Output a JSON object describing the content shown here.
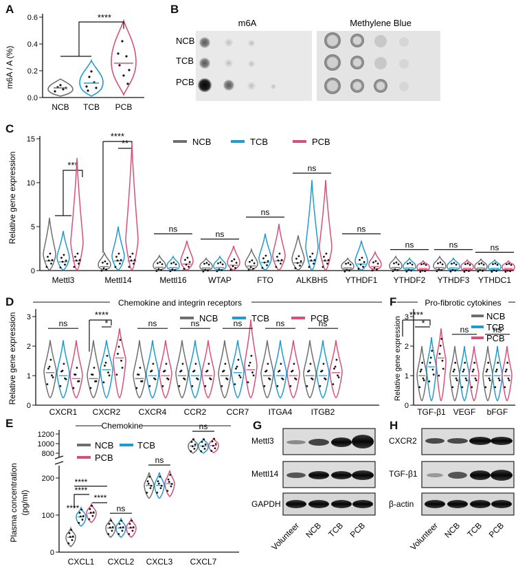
{
  "colors": {
    "ncb": "#6e6e6e",
    "tcb": "#1e9bd0",
    "pcb": "#d94f77",
    "ink": "#111111"
  },
  "groups": [
    "NCB",
    "TCB",
    "PCB"
  ],
  "panels": {
    "A": {
      "letter": "A",
      "ylabel": "m6A / A (%)",
      "ticks": [
        "0.0",
        "0.2",
        "0.4",
        "0.6"
      ],
      "categories": [
        "NCB",
        "TCB",
        "PCB"
      ],
      "sig": "****"
    },
    "B": {
      "letter": "B",
      "title_left": "m6A",
      "title_right": "Methylene Blue",
      "rows": [
        "NCB",
        "TCB",
        "PCB"
      ]
    },
    "C": {
      "letter": "C",
      "ylabel": "Relative gene expression",
      "ticks": [
        "0",
        "5",
        "10",
        "15"
      ],
      "genes": [
        "Mettl3",
        "Mettl14",
        "Mettl16",
        "WTAP",
        "FTO",
        "ALKBH5",
        "YTHDF1",
        "YTHDF2",
        "YTHDF3",
        "YTHDC1"
      ],
      "sig": [
        "***",
        "****",
        "**",
        "ns"
      ]
    },
    "D": {
      "letter": "D",
      "title": "Chemokine and integrin receptors",
      "ylabel": "Relative gene expression",
      "ticks": [
        "0",
        "1",
        "2",
        "3"
      ],
      "genes": [
        "CXCR1",
        "CXCR2",
        "CXCR4",
        "CCR2",
        "CCR7",
        "ITGA4",
        "ITGB2"
      ],
      "sig": [
        "ns",
        "****",
        "*"
      ]
    },
    "E": {
      "letter": "E",
      "title": "Chemokine",
      "ylabel": "Plasma concentration",
      "yunit": "(pg/ml)",
      "ticks_top": [
        "1200",
        "1000",
        "800"
      ],
      "ticks_bottom": [
        "200",
        "100",
        "0"
      ],
      "categories": [
        "CXCL1",
        "CXCL2",
        "CXCL3",
        "CXCL7"
      ],
      "sig": [
        "****",
        "ns"
      ]
    },
    "F": {
      "letter": "F",
      "title": "Pro-fibrotic cytokines",
      "ylabel": "Relative gene expression",
      "ticks": [
        "0",
        "1",
        "2",
        "3"
      ],
      "categories": [
        "TGF-β1",
        "VEGF",
        "bFGF"
      ],
      "sig": [
        "****",
        "*",
        "ns"
      ]
    },
    "G": {
      "letter": "G",
      "rows": [
        "Mettl3",
        "Mettl14",
        "GAPDH"
      ],
      "lanes": [
        "Volunteer",
        "NCB",
        "TCB",
        "PCB"
      ]
    },
    "H": {
      "letter": "H",
      "rows": [
        "CXCR2",
        "TGF-β1",
        "β-actin"
      ],
      "lanes": [
        "Volunteer",
        "NCB",
        "TCB",
        "PCB"
      ]
    }
  },
  "chart_data": [
    {
      "panel": "A",
      "type": "violin",
      "categories": [
        "NCB",
        "TCB",
        "PCB"
      ],
      "ylabel": "m6A / A (%)",
      "ylim": [
        0,
        0.6
      ],
      "series": [
        {
          "name": "NCB",
          "median": 0.08
        },
        {
          "name": "TCB",
          "median": 0.12
        },
        {
          "name": "PCB",
          "median": 0.26
        }
      ]
    },
    {
      "panel": "C",
      "type": "violin",
      "ylabel": "Relative gene expression",
      "ylim": [
        0,
        15
      ],
      "categories": [
        "Mettl3",
        "Mettl14",
        "Mettl16",
        "WTAP",
        "FTO",
        "ALKBH5",
        "YTHDF1",
        "YTHDF2",
        "YTHDF3",
        "YTHDC1"
      ],
      "series": [
        {
          "name": "NCB",
          "max": [
            6,
            2,
            1.7,
            1.4,
            2.4,
            4,
            1.4,
            1.6,
            1.6,
            1.3
          ]
        },
        {
          "name": "TCB",
          "max": [
            4.5,
            5,
            1.6,
            1.6,
            4.2,
            10.3,
            3.4,
            1.4,
            1.4,
            1.2
          ]
        },
        {
          "name": "PCB",
          "max": [
            12.8,
            14.5,
            3.4,
            2.8,
            5.3,
            10.3,
            2.1,
            1.1,
            1.2,
            1.1
          ]
        }
      ]
    },
    {
      "panel": "D",
      "type": "violin",
      "ylabel": "Relative gene expression",
      "ylim": [
        0,
        3
      ],
      "categories": [
        "CXCR1",
        "CXCR2",
        "CXCR4",
        "CCR2",
        "CCR7",
        "ITGA4",
        "ITGB2"
      ],
      "series": [
        {
          "name": "NCB",
          "median": [
            1.1,
            0.9,
            0.9,
            1.0,
            1.0,
            1.0,
            1.0
          ]
        },
        {
          "name": "TCB",
          "median": [
            1.0,
            1.2,
            1.0,
            1.0,
            1.1,
            1.0,
            1.0
          ]
        },
        {
          "name": "PCB",
          "median": [
            0.9,
            1.6,
            1.0,
            1.0,
            1.2,
            1.0,
            1.1
          ]
        }
      ]
    },
    {
      "panel": "E",
      "type": "violin",
      "ylabel": "Plasma concentration (pg/ml)",
      "categories": [
        "CXCL1",
        "CXCL2",
        "CXCL3",
        "CXCL7"
      ],
      "series": [
        {
          "name": "NCB",
          "median": [
            40,
            65,
            180,
            950
          ]
        },
        {
          "name": "TCB",
          "median": [
            95,
            65,
            180,
            950
          ]
        },
        {
          "name": "PCB",
          "median": [
            105,
            65,
            185,
            960
          ]
        }
      ]
    },
    {
      "panel": "F",
      "type": "violin",
      "ylabel": "Relative gene expression",
      "ylim": [
        0,
        3
      ],
      "categories": [
        "TGF-β1",
        "VEGF",
        "bFGF"
      ],
      "series": [
        {
          "name": "NCB",
          "median": [
            1.0,
            1.0,
            1.0
          ]
        },
        {
          "name": "TCB",
          "median": [
            1.3,
            1.0,
            1.0
          ]
        },
        {
          "name": "PCB",
          "median": [
            1.6,
            1.0,
            1.0
          ]
        }
      ]
    }
  ]
}
